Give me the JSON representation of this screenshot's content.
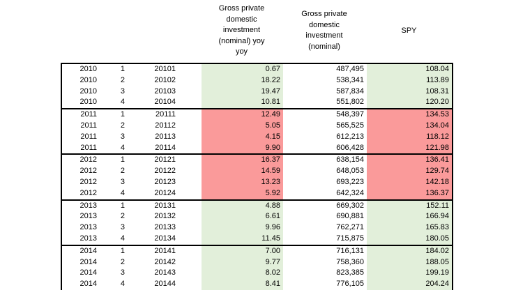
{
  "colors": {
    "green_fill": "#e2efda",
    "red_fill": "#fa9a9a",
    "border": "#000000",
    "background": "#ffffff"
  },
  "headers": {
    "yoy_lines": [
      "Gross private",
      "domestic",
      "investment",
      "(nominal) yoy",
      "yoy"
    ],
    "yoy_full": "Gross private domestic investment (nominal) yoy yoy",
    "nominal_lines": [
      "Gross private",
      "domestic",
      "investment",
      "(nominal)"
    ],
    "nominal_full": "Gross private domestic investment (nominal)",
    "spy": "SPY"
  },
  "table": {
    "columns": [
      "year",
      "quarter",
      "code",
      "yoy",
      "nominal",
      "spy"
    ],
    "groups": [
      {
        "year": "2010",
        "fill": "green",
        "rows": [
          {
            "year": "2010",
            "quarter": "1",
            "code": "20101",
            "yoy": "0.67",
            "nominal": "487,495",
            "spy": "108.04"
          },
          {
            "year": "2010",
            "quarter": "2",
            "code": "20102",
            "yoy": "18.22",
            "nominal": "538,341",
            "spy": "113.89"
          },
          {
            "year": "2010",
            "quarter": "3",
            "code": "20103",
            "yoy": "19.47",
            "nominal": "587,834",
            "spy": "108.31"
          },
          {
            "year": "2010",
            "quarter": "4",
            "code": "20104",
            "yoy": "10.81",
            "nominal": "551,802",
            "spy": "120.20"
          }
        ]
      },
      {
        "year": "2011",
        "fill": "red",
        "rows": [
          {
            "year": "2011",
            "quarter": "1",
            "code": "20111",
            "yoy": "12.49",
            "nominal": "548,397",
            "spy": "134.53"
          },
          {
            "year": "2011",
            "quarter": "2",
            "code": "20112",
            "yoy": "5.05",
            "nominal": "565,525",
            "spy": "134.04"
          },
          {
            "year": "2011",
            "quarter": "3",
            "code": "20113",
            "yoy": "4.15",
            "nominal": "612,213",
            "spy": "118.12"
          },
          {
            "year": "2011",
            "quarter": "4",
            "code": "20114",
            "yoy": "9.90",
            "nominal": "606,428",
            "spy": "121.98"
          }
        ]
      },
      {
        "year": "2012",
        "fill": "red",
        "rows": [
          {
            "year": "2012",
            "quarter": "1",
            "code": "20121",
            "yoy": "16.37",
            "nominal": "638,154",
            "spy": "136.41"
          },
          {
            "year": "2012",
            "quarter": "2",
            "code": "20122",
            "yoy": "14.59",
            "nominal": "648,053",
            "spy": "129.74"
          },
          {
            "year": "2012",
            "quarter": "3",
            "code": "20123",
            "yoy": "13.23",
            "nominal": "693,223",
            "spy": "142.18"
          },
          {
            "year": "2012",
            "quarter": "4",
            "code": "20124",
            "yoy": "5.92",
            "nominal": "642,324",
            "spy": "136.37"
          }
        ]
      },
      {
        "year": "2013",
        "fill": "green",
        "rows": [
          {
            "year": "2013",
            "quarter": "1",
            "code": "20131",
            "yoy": "4.88",
            "nominal": "669,302",
            "spy": "152.11"
          },
          {
            "year": "2013",
            "quarter": "2",
            "code": "20132",
            "yoy": "6.61",
            "nominal": "690,881",
            "spy": "166.94"
          },
          {
            "year": "2013",
            "quarter": "3",
            "code": "20133",
            "yoy": "9.96",
            "nominal": "762,271",
            "spy": "165.83"
          },
          {
            "year": "2013",
            "quarter": "4",
            "code": "20134",
            "yoy": "11.45",
            "nominal": "715,875",
            "spy": "180.05"
          }
        ]
      },
      {
        "year": "2014",
        "fill": "green",
        "rows": [
          {
            "year": "2014",
            "quarter": "1",
            "code": "20141",
            "yoy": "7.00",
            "nominal": "716,131",
            "spy": "184.02"
          },
          {
            "year": "2014",
            "quarter": "2",
            "code": "20142",
            "yoy": "9.77",
            "nominal": "758,360",
            "spy": "188.05"
          },
          {
            "year": "2014",
            "quarter": "3",
            "code": "20143",
            "yoy": "8.02",
            "nominal": "823,385",
            "spy": "199.19"
          },
          {
            "year": "2014",
            "quarter": "4",
            "code": "20144",
            "yoy": "8.41",
            "nominal": "776,105",
            "spy": "204.24"
          }
        ]
      }
    ]
  }
}
